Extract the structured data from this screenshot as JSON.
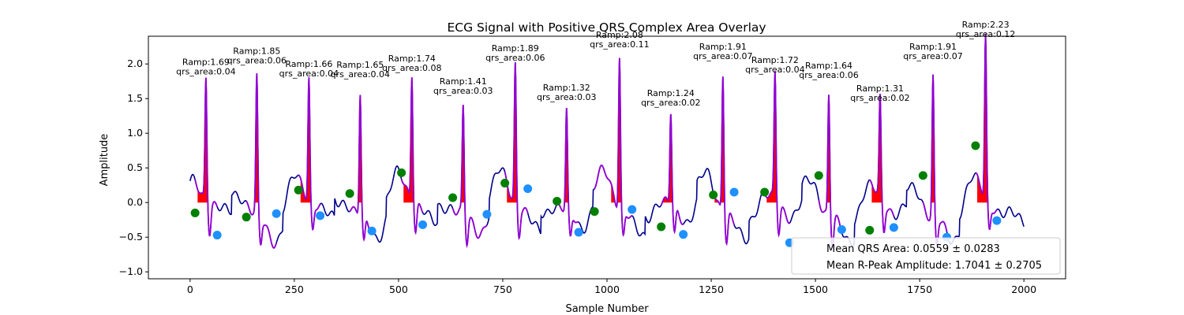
{
  "chart_data": {
    "type": "line",
    "title": "ECG Signal with Positive QRS Complex Area Overlay",
    "xlabel": "Sample Number",
    "ylabel": "Amplitude",
    "xlim": [
      -100,
      2100
    ],
    "ylim": [
      -1.1,
      2.4
    ],
    "x_ticks": [
      0,
      250,
      500,
      750,
      1000,
      1250,
      1500,
      1750,
      2000
    ],
    "y_ticks": [
      -1.0,
      -0.5,
      0.0,
      0.5,
      1.0,
      1.5,
      2.0
    ],
    "grid": false,
    "colors": {
      "signal": "#00008b",
      "qrs_segment": "#9400d3",
      "area_fill": "#ff0000",
      "onset_marker": "#008000",
      "offset_marker": "#1e90ff"
    },
    "beats": [
      {
        "r_x": 38,
        "ramp": 1.69,
        "qrs_area": 0.04,
        "ramp_label": "Ramp:1.69",
        "area_label": "qrs_area:0.04"
      },
      {
        "r_x": 160,
        "ramp": 1.85,
        "qrs_area": 0.06,
        "ramp_label": "Ramp:1.85",
        "area_label": "qrs_area:0.06"
      },
      {
        "r_x": 285,
        "ramp": 1.66,
        "qrs_area": 0.04,
        "ramp_label": "Ramp:1.66",
        "area_label": "qrs_area:0.04"
      },
      {
        "r_x": 408,
        "ramp": 1.65,
        "qrs_area": 0.04,
        "ramp_label": "Ramp:1.65",
        "area_label": "qrs_area:0.04"
      },
      {
        "r_x": 532,
        "ramp": 1.74,
        "qrs_area": 0.08,
        "ramp_label": "Ramp:1.74",
        "area_label": "qrs_area:0.08"
      },
      {
        "r_x": 655,
        "ramp": 1.41,
        "qrs_area": 0.03,
        "ramp_label": "Ramp:1.41",
        "area_label": "qrs_area:0.03"
      },
      {
        "r_x": 780,
        "ramp": 1.89,
        "qrs_area": 0.06,
        "ramp_label": "Ramp:1.89",
        "area_label": "qrs_area:0.06"
      },
      {
        "r_x": 903,
        "ramp": 1.32,
        "qrs_area": 0.03,
        "ramp_label": "Ramp:1.32",
        "area_label": "qrs_area:0.03"
      },
      {
        "r_x": 1030,
        "ramp": 2.08,
        "qrs_area": 0.11,
        "ramp_label": "Ramp:2.08",
        "area_label": "qrs_area:0.11"
      },
      {
        "r_x": 1153,
        "ramp": 1.24,
        "qrs_area": 0.02,
        "ramp_label": "Ramp:1.24",
        "area_label": "qrs_area:0.02"
      },
      {
        "r_x": 1278,
        "ramp": 1.91,
        "qrs_area": 0.07,
        "ramp_label": "Ramp:1.91",
        "area_label": "qrs_area:0.07"
      },
      {
        "r_x": 1403,
        "ramp": 1.72,
        "qrs_area": 0.04,
        "ramp_label": "Ramp:1.72",
        "area_label": "qrs_area:0.04"
      },
      {
        "r_x": 1532,
        "ramp": 1.64,
        "qrs_area": 0.06,
        "ramp_label": "Ramp:1.64",
        "area_label": "qrs_area:0.06"
      },
      {
        "r_x": 1655,
        "ramp": 1.31,
        "qrs_area": 0.02,
        "ramp_label": "Ramp:1.31",
        "area_label": "qrs_area:0.02"
      },
      {
        "r_x": 1782,
        "ramp": 1.91,
        "qrs_area": 0.07,
        "ramp_label": "Ramp:1.91",
        "area_label": "qrs_area:0.07"
      },
      {
        "r_x": 1908,
        "ramp": 2.23,
        "qrs_area": 0.12,
        "ramp_label": "Ramp:2.23",
        "area_label": "qrs_area:0.12"
      }
    ],
    "onset_markers": [
      [
        12,
        -0.15
      ],
      [
        135,
        -0.21
      ],
      [
        260,
        0.18
      ],
      [
        383,
        0.13
      ],
      [
        507,
        0.43
      ],
      [
        630,
        0.07
      ],
      [
        755,
        0.28
      ],
      [
        880,
        0.02
      ],
      [
        970,
        -0.13
      ],
      [
        1130,
        -0.35
      ],
      [
        1255,
        0.11
      ],
      [
        1378,
        0.15
      ],
      [
        1508,
        0.39
      ],
      [
        1630,
        -0.4
      ],
      [
        1758,
        0.39
      ],
      [
        1884,
        0.82
      ]
    ],
    "offset_markers": [
      [
        65,
        -0.47
      ],
      [
        207,
        -0.16
      ],
      [
        312,
        -0.19
      ],
      [
        436,
        -0.41
      ],
      [
        558,
        -0.32
      ],
      [
        712,
        -0.17
      ],
      [
        810,
        0.2
      ],
      [
        932,
        -0.43
      ],
      [
        1060,
        -0.1
      ],
      [
        1183,
        -0.46
      ],
      [
        1305,
        0.15
      ],
      [
        1438,
        -0.58
      ],
      [
        1563,
        -0.39
      ],
      [
        1688,
        -0.36
      ],
      [
        1815,
        -0.5
      ],
      [
        1935,
        -0.26
      ]
    ],
    "legend": {
      "position": "lower-right",
      "entries": [
        "Mean QRS Area: 0.0559 ± 0.0283",
        "Mean R-Peak Amplitude: 1.7041 ± 0.2705"
      ]
    }
  }
}
